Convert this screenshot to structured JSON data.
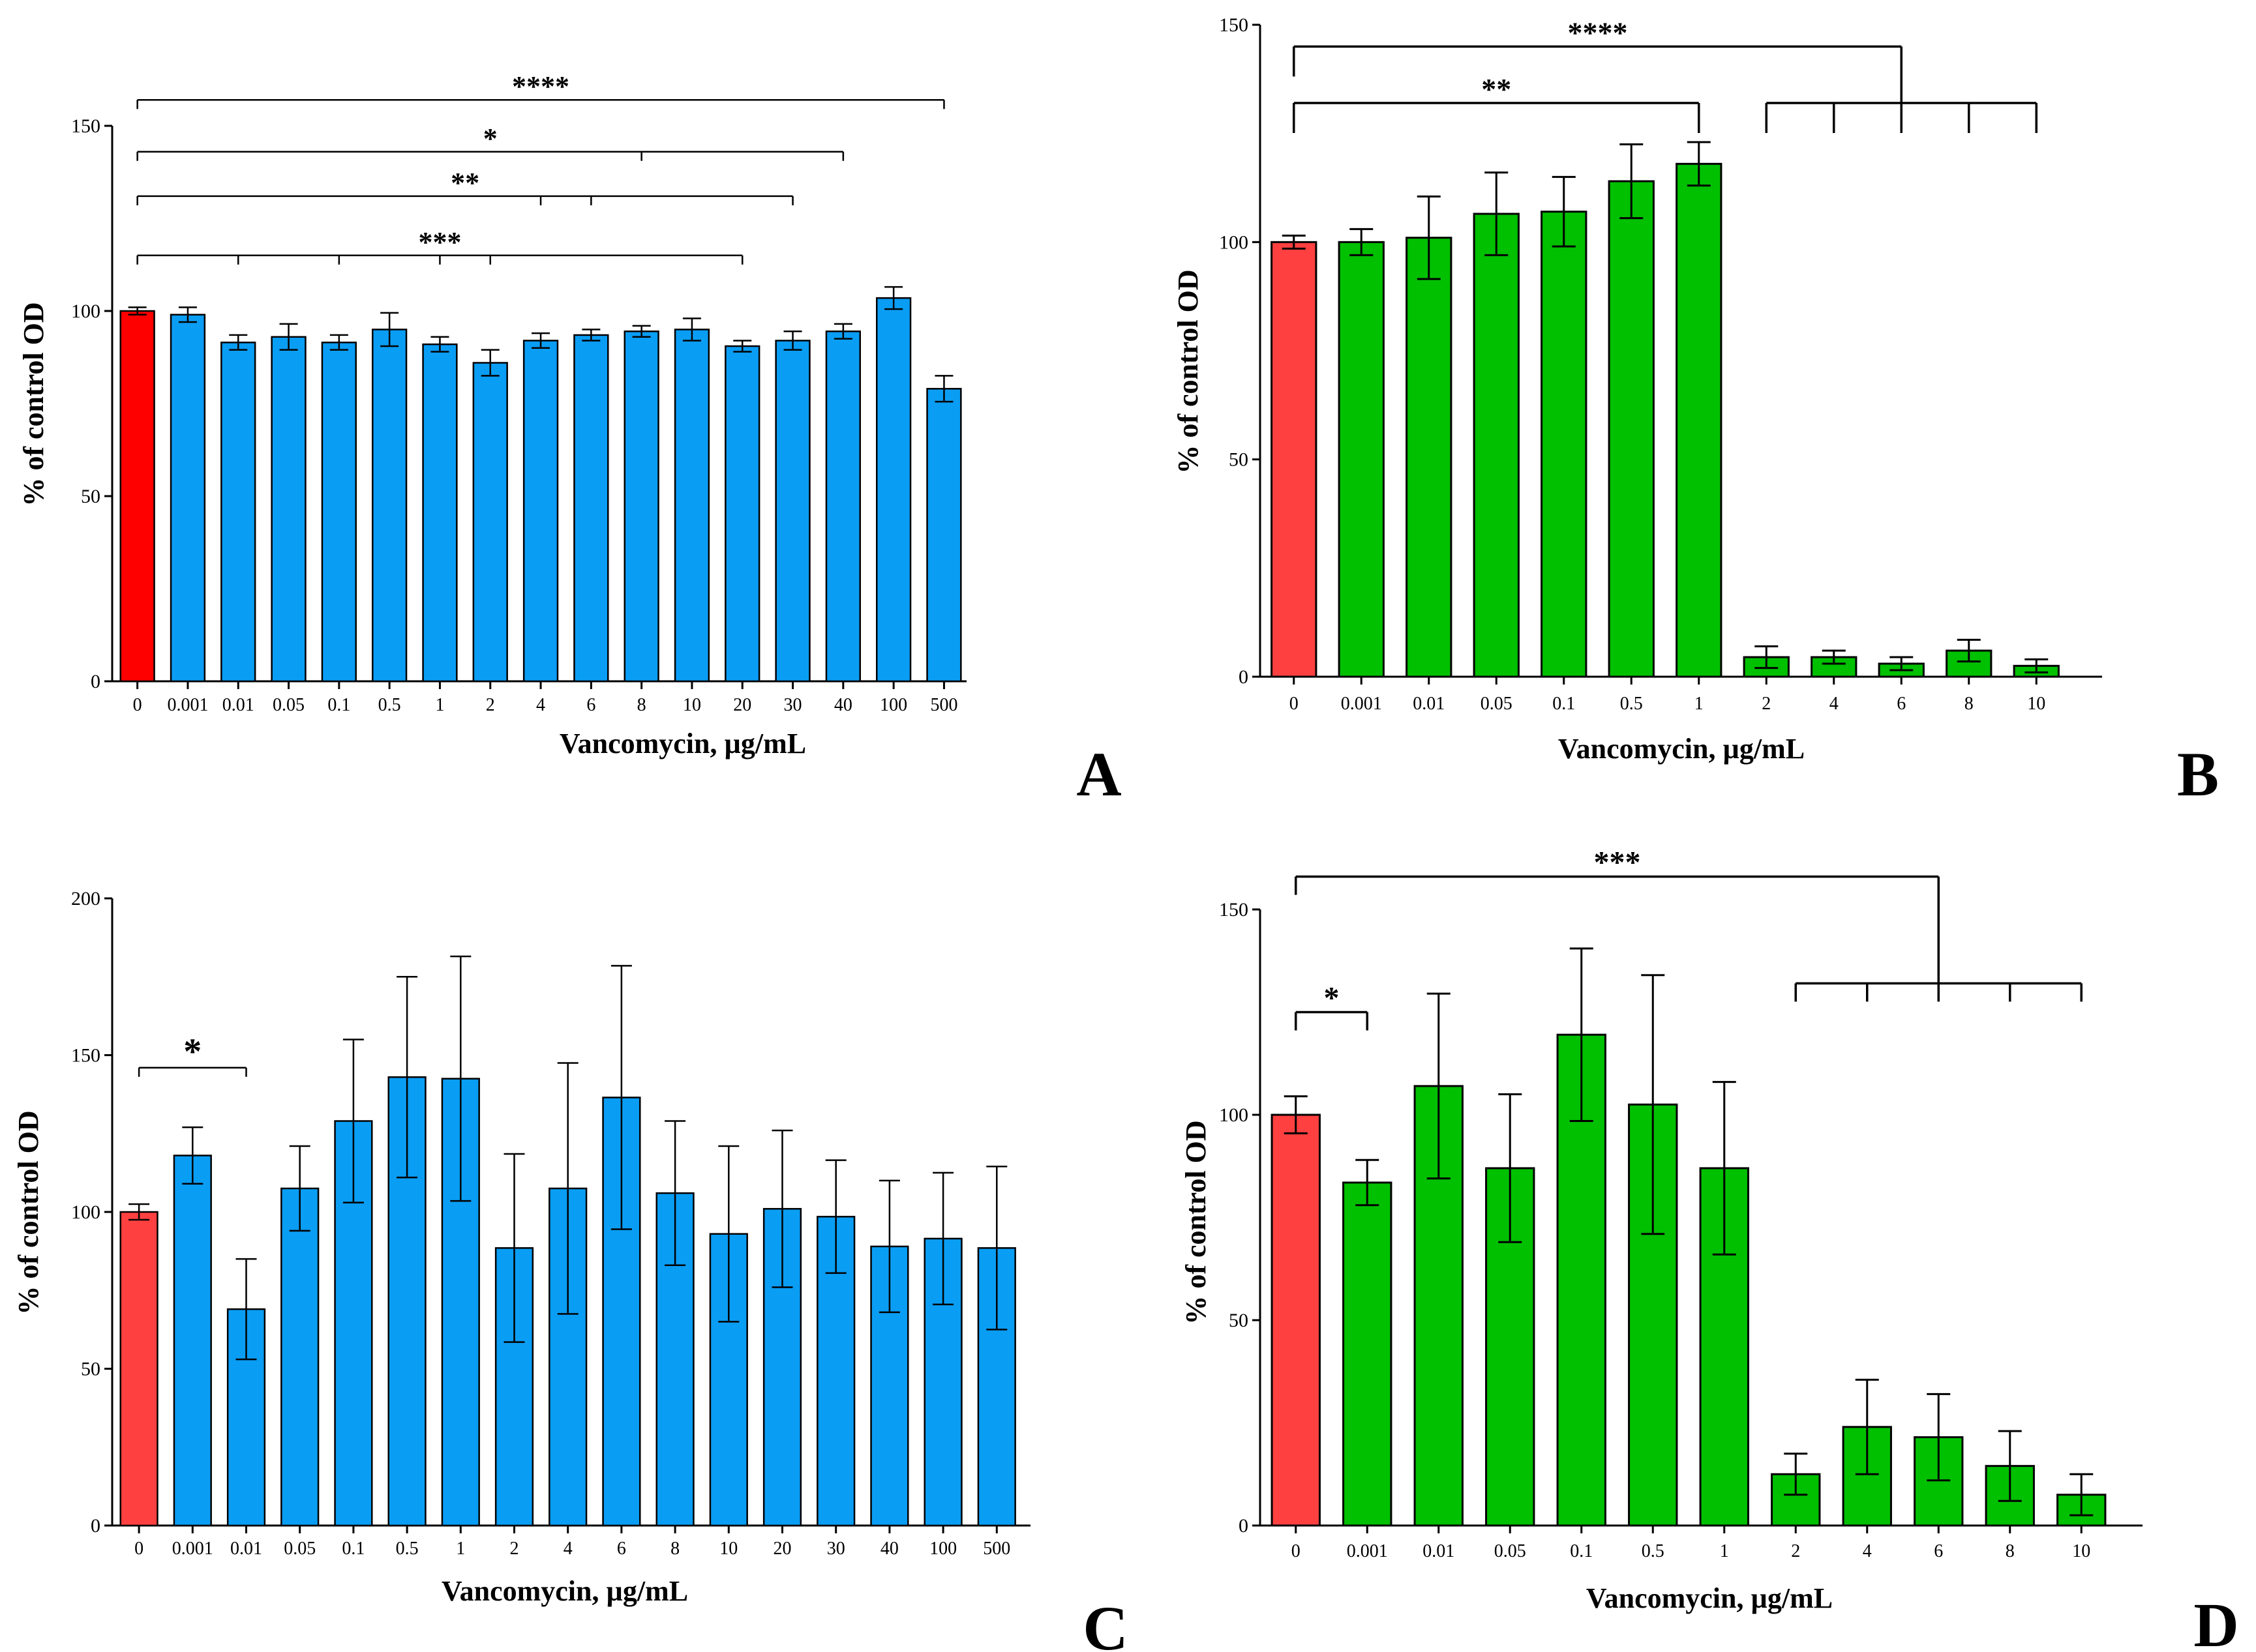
{
  "chart_data": [
    {
      "type": "bar",
      "panel_label": "A",
      "title": "",
      "xlabel": "Vancomycin, µg/mL",
      "ylabel": "% of control  OD",
      "ylim": [
        0,
        150
      ],
      "yticks": [
        0,
        50,
        100,
        150
      ],
      "categories": [
        "0",
        "0.001",
        "0.01",
        "0.05",
        "0.1",
        "0.5",
        "1",
        "2",
        "4",
        "6",
        "8",
        "10",
        "20",
        "30",
        "40",
        "100",
        "500"
      ],
      "values": [
        100,
        99,
        91.5,
        93,
        91.5,
        95,
        91,
        86,
        92,
        93.5,
        94.5,
        95,
        90.5,
        92,
        94.5,
        103.5,
        79
      ],
      "errors": [
        1,
        2,
        2,
        3.5,
        2,
        4.5,
        2,
        3.5,
        2,
        1.5,
        1.5,
        3,
        1.5,
        2.5,
        2,
        3,
        3.5
      ],
      "colors": [
        "#ff0000",
        "#0a9df4",
        "#0a9df4",
        "#0a9df4",
        "#0a9df4",
        "#0a9df4",
        "#0a9df4",
        "#0a9df4",
        "#0a9df4",
        "#0a9df4",
        "#0a9df4",
        "#0a9df4",
        "#0a9df4",
        "#0a9df4",
        "#0a9df4",
        "#0a9df4",
        "#0a9df4"
      ],
      "significance": [
        {
          "label": "****",
          "from": 0,
          "to": [
            16
          ],
          "y": 157
        },
        {
          "label": "*",
          "from": 0,
          "to": [
            10,
            14
          ],
          "y": 143
        },
        {
          "label": "**",
          "from": 0,
          "to": [
            8,
            9,
            13
          ],
          "y": 131
        },
        {
          "label": "***",
          "from": 0,
          "to": [
            2,
            4,
            6,
            7,
            12
          ],
          "y": 115
        }
      ]
    },
    {
      "type": "bar",
      "panel_label": "B",
      "title": "",
      "xlabel": "Vancomycin, µg/mL",
      "ylabel": "% of control  OD",
      "ylim": [
        0,
        150
      ],
      "yticks": [
        0,
        50,
        100,
        150
      ],
      "categories": [
        "0",
        "0.001",
        "0.01",
        "0.05",
        "0.1",
        "0.5",
        "1",
        "2",
        "4",
        "6",
        "8",
        "10"
      ],
      "values": [
        100,
        100,
        101,
        106.5,
        107,
        114,
        118,
        4.5,
        4.5,
        3,
        6,
        2.5
      ],
      "errors": [
        1.5,
        3,
        9.5,
        9.5,
        8,
        8.5,
        5,
        2.5,
        1.5,
        1.5,
        2.5,
        1.5
      ],
      "colors": [
        "#ff4040",
        "#00c000",
        "#00c000",
        "#00c000",
        "#00c000",
        "#00c000",
        "#00c000",
        "#00c000",
        "#00c000",
        "#00c000",
        "#00c000",
        "#00c000"
      ],
      "significance": [
        {
          "label": "****",
          "from": 0,
          "to_group": [
            7,
            8,
            9,
            10,
            11
          ],
          "y": 145,
          "group_y": 132
        },
        {
          "label": "**",
          "from": 0,
          "to": [
            6
          ],
          "y": 132
        }
      ]
    },
    {
      "type": "bar",
      "panel_label": "C",
      "title": "",
      "xlabel": "Vancomycin, µg/mL",
      "ylabel": "% of control  OD",
      "ylim": [
        0,
        200
      ],
      "yticks": [
        0,
        50,
        100,
        150,
        200
      ],
      "categories": [
        "0",
        "0.001",
        "0.01",
        "0.05",
        "0.1",
        "0.5",
        "1",
        "2",
        "4",
        "6",
        "8",
        "10",
        "20",
        "30",
        "40",
        "100",
        "500"
      ],
      "values": [
        100,
        118,
        69,
        107.5,
        129,
        143,
        142.5,
        88.5,
        107.5,
        136.5,
        106,
        93,
        101,
        98.5,
        89,
        91.5,
        88.5
      ],
      "errors": [
        2.5,
        9,
        16,
        13.5,
        26,
        32,
        39,
        30,
        40,
        42,
        23,
        28,
        25,
        18,
        21,
        21,
        26
      ],
      "colors": [
        "#ff4040",
        "#0a9df4",
        "#0a9df4",
        "#0a9df4",
        "#0a9df4",
        "#0a9df4",
        "#0a9df4",
        "#0a9df4",
        "#0a9df4",
        "#0a9df4",
        "#0a9df4",
        "#0a9df4",
        "#0a9df4",
        "#0a9df4",
        "#0a9df4",
        "#0a9df4",
        "#0a9df4"
      ],
      "significance": [
        {
          "label": "*",
          "from": 0,
          "to": [
            2
          ],
          "y": 146
        }
      ]
    },
    {
      "type": "bar",
      "panel_label": "D",
      "title": "",
      "xlabel": "Vancomycin, µg/mL",
      "ylabel": "% of control  OD",
      "ylim": [
        0,
        150
      ],
      "yticks": [
        0,
        50,
        100,
        150
      ],
      "categories": [
        "0",
        "0.001",
        "0.01",
        "0.05",
        "0.1",
        "0.5",
        "1",
        "2",
        "4",
        "6",
        "8",
        "10"
      ],
      "values": [
        100,
        83.5,
        107,
        87,
        119.5,
        102.5,
        87,
        12.5,
        24,
        21.5,
        14.5,
        7.5
      ],
      "errors": [
        4.5,
        5.5,
        22.5,
        18,
        21,
        31.5,
        21,
        5,
        11.5,
        10.5,
        8.5,
        5
      ],
      "colors": [
        "#ff4040",
        "#00c000",
        "#00c000",
        "#00c000",
        "#00c000",
        "#00c000",
        "#00c000",
        "#00c000",
        "#00c000",
        "#00c000",
        "#00c000",
        "#00c000"
      ],
      "significance": [
        {
          "label": "***",
          "from": 0,
          "to_group": [
            7,
            8,
            9,
            10,
            11
          ],
          "y": 158,
          "group_y": 132
        },
        {
          "label": "*",
          "from": 0,
          "to": [
            1
          ],
          "y": 125
        }
      ]
    }
  ]
}
